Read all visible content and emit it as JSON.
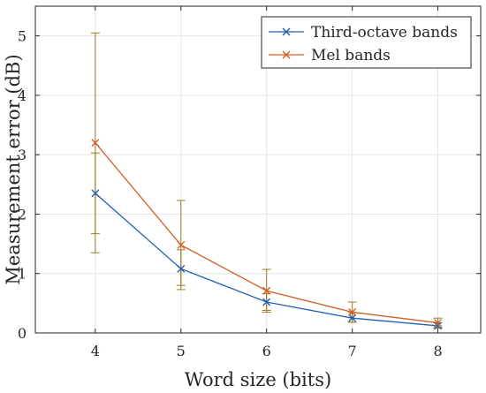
{
  "chart_data": {
    "type": "line",
    "xlabel": "Word size (bits)",
    "ylabel": "Measurement error (dB)",
    "x": [
      4,
      5,
      6,
      7,
      8
    ],
    "xlim": [
      3.3,
      8.5
    ],
    "ylim": [
      0,
      5.5
    ],
    "xticks": [
      "4",
      "5",
      "6",
      "7",
      "8"
    ],
    "yticks": [
      "0",
      "1",
      "2",
      "3",
      "4",
      "5"
    ],
    "grid": true,
    "legend_position": "top-right",
    "series": [
      {
        "name": "Third-octave bands",
        "color": "#2160b3",
        "values": [
          2.35,
          1.08,
          0.52,
          0.25,
          0.12
        ],
        "err_low": [
          1.67,
          0.8,
          0.38,
          0.18,
          0.08
        ],
        "err_high": [
          3.03,
          1.4,
          0.66,
          0.34,
          0.17
        ]
      },
      {
        "name": "Mel bands",
        "color": "#d35f25",
        "values": [
          3.2,
          1.48,
          0.71,
          0.35,
          0.17
        ],
        "err_low": [
          1.35,
          0.73,
          0.35,
          0.18,
          0.1
        ],
        "err_high": [
          5.05,
          2.23,
          1.07,
          0.52,
          0.25
        ]
      }
    ],
    "errorbar_color": "#9a7d1e"
  }
}
